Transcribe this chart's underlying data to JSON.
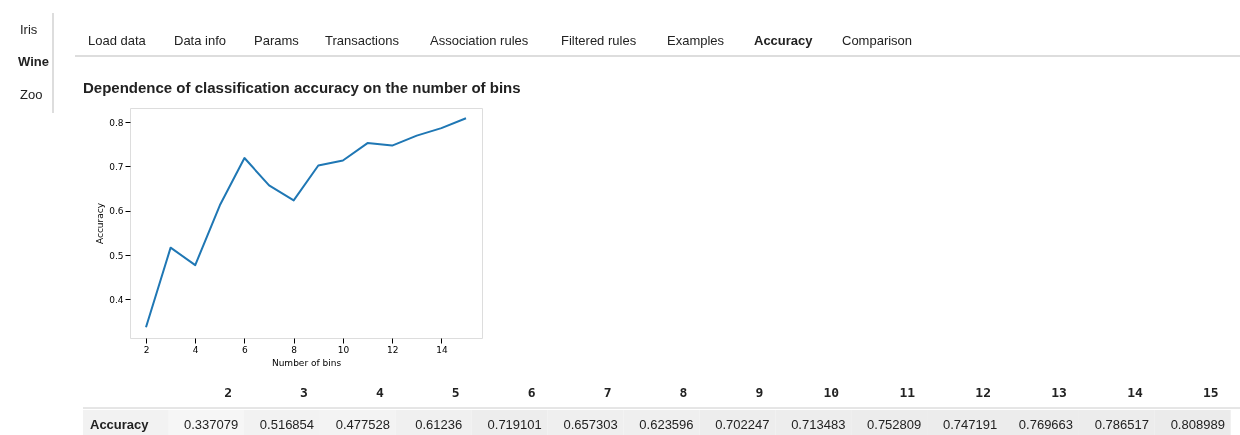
{
  "chart_data": [
    {
      "type": "line",
      "title": "Dependence of classification accuracy on the number of bins",
      "xlabel": "Number of bins",
      "ylabel": "Accuracy",
      "x": [
        2,
        3,
        4,
        5,
        6,
        7,
        8,
        9,
        10,
        11,
        12,
        13,
        14,
        15
      ],
      "series": [
        {
          "color": "#1f77b4",
          "values": [
            0.337079,
            0.516854,
            0.477528,
            0.61236,
            0.719101,
            0.657303,
            0.623596,
            0.702247,
            0.713483,
            0.752809,
            0.747191,
            0.769663,
            0.786517,
            0.808989
          ]
        }
      ],
      "xlim": [
        1.35,
        15.65
      ],
      "xticks": [
        2,
        4,
        6,
        8,
        10,
        12,
        14
      ],
      "ylim": [
        0.313,
        0.832
      ],
      "yticks": [
        0.4,
        0.5,
        0.6,
        0.7,
        0.8
      ],
      "grid": false,
      "legend": false,
      "marker": "none",
      "line_style": "solid",
      "annotations": [
        "Iris",
        "Wine",
        "Zoo",
        "Load data",
        "Data info",
        "Params",
        "Transactions",
        "Association rules",
        "Filtered rules",
        "Examples",
        "Accuracy",
        "Comparison"
      ]
    },
    {
      "type": "heatmap",
      "categories": [
        "2",
        "3",
        "4",
        "5",
        "6",
        "7",
        "8",
        "9",
        "10",
        "11",
        "12",
        "13",
        "14",
        "15"
      ],
      "y_categories": [
        "Accuracy"
      ],
      "cells": [
        [
          0.337079,
          0.516854,
          0.477528,
          0.61236,
          0.719101,
          0.657303,
          0.623596,
          0.702247,
          0.713483,
          0.752809,
          0.747191,
          0.769663,
          0.786517,
          0.808989
        ]
      ],
      "cell_labels": [
        [
          "0.337079",
          "0.516854",
          "0.477528",
          "0.61236",
          "0.719101",
          "0.657303",
          "0.623596",
          "0.702247",
          "0.713483",
          "0.752809",
          "0.747191",
          "0.769663",
          "0.786517",
          "0.808989"
        ]
      ]
    }
  ]
}
